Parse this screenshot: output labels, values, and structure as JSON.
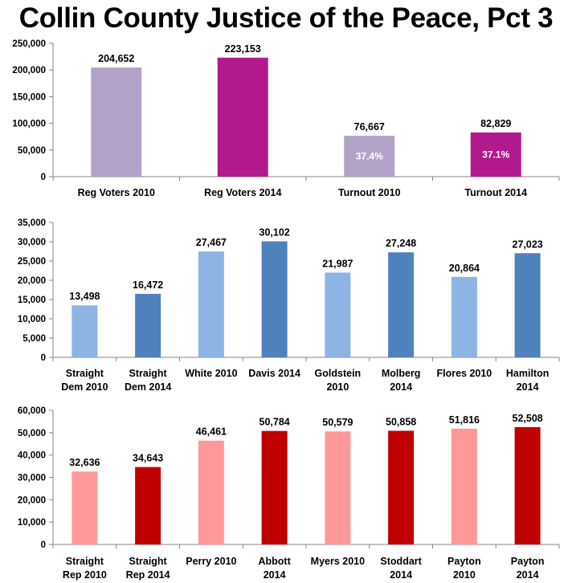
{
  "title": "Collin County Justice of the Peace, Pct 3",
  "chart_data": [
    {
      "type": "bar",
      "categories": [
        [
          "Reg Voters 2010"
        ],
        [
          "Reg Voters 2014"
        ],
        [
          "Turnout 2010"
        ],
        [
          "Turnout 2014"
        ]
      ],
      "values": [
        204652,
        223153,
        76667,
        82829
      ],
      "value_labels": [
        "204,652",
        "223,153",
        "76,667",
        "82,829"
      ],
      "inner_labels": [
        "",
        "",
        "37.4%",
        "37.1%"
      ],
      "colors": [
        "#b3a2c7",
        "#b2198c",
        "#b3a2c7",
        "#b2198c"
      ],
      "ylim": [
        0,
        250000
      ],
      "yticks": [
        0,
        50000,
        100000,
        150000,
        200000,
        250000
      ],
      "ytick_labels": [
        "0",
        "50,000",
        "100,000",
        "150,000",
        "200,000",
        "250,000"
      ],
      "title": "",
      "xlabel": "",
      "ylabel": ""
    },
    {
      "type": "bar",
      "categories": [
        [
          "Straight",
          "Dem 2010"
        ],
        [
          "Straight",
          "Dem 2014"
        ],
        [
          "White 2010"
        ],
        [
          "Davis 2014"
        ],
        [
          "Goldstein",
          "2010"
        ],
        [
          "Molberg",
          "2014"
        ],
        [
          "Flores 2010"
        ],
        [
          "Hamilton",
          "2014"
        ]
      ],
      "values": [
        13498,
        16472,
        27467,
        30102,
        21987,
        27248,
        20864,
        27023
      ],
      "value_labels": [
        "13,498",
        "16,472",
        "27,467",
        "30,102",
        "21,987",
        "27,248",
        "20,864",
        "27,023"
      ],
      "colors": [
        "#8eb4e3",
        "#4f81bd",
        "#8eb4e3",
        "#4f81bd",
        "#8eb4e3",
        "#4f81bd",
        "#8eb4e3",
        "#4f81bd"
      ],
      "ylim": [
        0,
        35000
      ],
      "yticks": [
        0,
        5000,
        10000,
        15000,
        20000,
        25000,
        30000,
        35000
      ],
      "ytick_labels": [
        "0",
        "5,000",
        "10,000",
        "15,000",
        "20,000",
        "25,000",
        "30,000",
        "35,000"
      ],
      "title": "",
      "xlabel": "",
      "ylabel": ""
    },
    {
      "type": "bar",
      "categories": [
        [
          "Straight",
          "Rep 2010"
        ],
        [
          "Straight",
          "Rep 2014"
        ],
        [
          "Perry 2010"
        ],
        [
          "Abbott",
          "2014"
        ],
        [
          "Myers 2010"
        ],
        [
          "Stoddart",
          "2014"
        ],
        [
          "Payton",
          "2010"
        ],
        [
          "Payton",
          "2014"
        ]
      ],
      "values": [
        32636,
        34643,
        46461,
        50784,
        50579,
        50858,
        51816,
        52508
      ],
      "value_labels": [
        "32,636",
        "34,643",
        "46,461",
        "50,784",
        "50,579",
        "50,858",
        "51,816",
        "52,508"
      ],
      "colors": [
        "#ff9999",
        "#c00000",
        "#ff9999",
        "#c00000",
        "#ff9999",
        "#c00000",
        "#ff9999",
        "#c00000"
      ],
      "ylim": [
        0,
        60000
      ],
      "yticks": [
        0,
        10000,
        20000,
        30000,
        40000,
        50000,
        60000
      ],
      "ytick_labels": [
        "0",
        "10,000",
        "20,000",
        "30,000",
        "40,000",
        "50,000",
        "60,000"
      ],
      "title": "",
      "xlabel": "",
      "ylabel": ""
    }
  ]
}
